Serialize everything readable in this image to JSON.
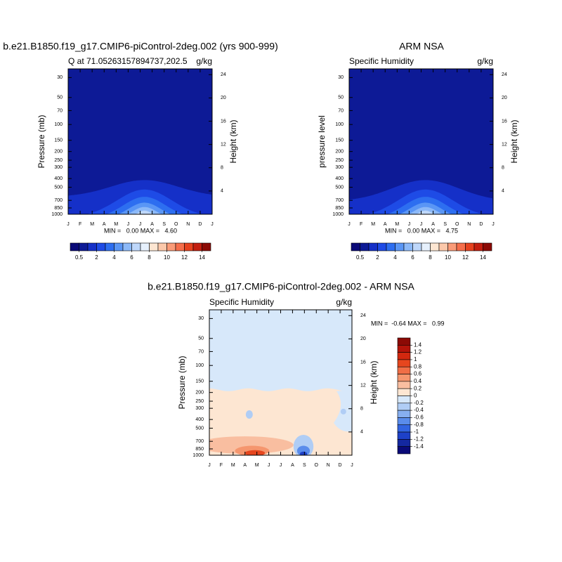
{
  "chart_data": [
    {
      "type": "contour",
      "title": "b.e21.B1850.f19_g17.CMIP6-piControl-2deg.002 (yrs 900-999)",
      "left_label": "Q at 71.05263157894737,202.5",
      "right_label": "g/kg",
      "ylabel": "Pressure (mb)",
      "y2label": "Height (km)",
      "categories": [
        "J",
        "F",
        "M",
        "A",
        "M",
        "J",
        "J",
        "A",
        "S",
        "O",
        "N",
        "D",
        "J"
      ],
      "ylim": [
        1000,
        24
      ],
      "yticks": [
        30,
        50,
        70,
        100,
        150,
        200,
        250,
        300,
        400,
        500,
        700,
        850,
        1000
      ],
      "ylog": true,
      "y2lim": [
        0,
        25
      ],
      "y2ticks": [
        4,
        8,
        12,
        16,
        20,
        24
      ],
      "stats": "MIN =   0.00 MAX =   4.60",
      "colorbar_labels": [
        0.5,
        2,
        4,
        6,
        8,
        10,
        12,
        14
      ],
      "colors": [
        "#0a0a78",
        "#0d1a96",
        "#1530c8",
        "#1e4be6",
        "#2d6ef0",
        "#5a96f5",
        "#8cb9f8",
        "#bed7fa",
        "#e6f0fc",
        "#fde6d2",
        "#fcc8aa",
        "#fa9b78",
        "#f56e4b",
        "#e6411e",
        "#c31e0f",
        "#8c0a05"
      ]
    },
    {
      "type": "contour",
      "title": "ARM NSA",
      "left_label": "Specific Humidity",
      "right_label": "g/kg",
      "ylabel": "pressure level",
      "y2label": "Height (km)",
      "categories": [
        "J",
        "F",
        "M",
        "A",
        "M",
        "J",
        "J",
        "A",
        "S",
        "O",
        "N",
        "D",
        "J"
      ],
      "ylim": [
        1000,
        24
      ],
      "yticks": [
        30,
        50,
        70,
        100,
        150,
        200,
        250,
        300,
        400,
        500,
        700,
        850,
        1000
      ],
      "ylog": true,
      "y2lim": [
        0,
        25
      ],
      "y2ticks": [
        4,
        8,
        12,
        16,
        20,
        24
      ],
      "stats": "MIN =   0.00 MAX =   4.75",
      "colorbar_labels": [
        0.5,
        2,
        4,
        6,
        8,
        10,
        12,
        14
      ],
      "colors": [
        "#0a0a78",
        "#0d1a96",
        "#1530c8",
        "#1e4be6",
        "#2d6ef0",
        "#5a96f5",
        "#8cb9f8",
        "#bed7fa",
        "#e6f0fc",
        "#fde6d2",
        "#fcc8aa",
        "#fa9b78",
        "#f56e4b",
        "#e6411e",
        "#c31e0f",
        "#8c0a05"
      ]
    },
    {
      "type": "contour-diff",
      "title": "b.e21.B1850.f19_g17.CMIP6-piControl-2deg.002 - ARM NSA",
      "left_label": "Specific Humidity",
      "right_label": "g/kg",
      "ylabel": "Pressure (mb)",
      "y2label": "Height (km)",
      "categories": [
        "J",
        "F",
        "M",
        "A",
        "M",
        "J",
        "J",
        "A",
        "S",
        "O",
        "N",
        "D",
        "J"
      ],
      "ylim": [
        1000,
        24
      ],
      "yticks": [
        30,
        50,
        70,
        100,
        150,
        200,
        250,
        300,
        400,
        500,
        700,
        850,
        1000
      ],
      "ylog": true,
      "y2lim": [
        0,
        25
      ],
      "y2ticks": [
        4,
        8,
        12,
        16,
        20,
        24
      ],
      "stats": "MIN =  -0.64 MAX =   0.99",
      "colorbar_labels": [
        1.4,
        1.2,
        1,
        0.8,
        0.6,
        0.4,
        0.2,
        0,
        -0.2,
        -0.4,
        -0.6,
        -0.8,
        -1,
        -1.2,
        -1.4
      ],
      "colors": [
        "#8c0a05",
        "#b4140a",
        "#d2280f",
        "#e6461e",
        "#f06e46",
        "#f5966e",
        "#f9bea0",
        "#fde6d2",
        "#d7e8fa",
        "#b0cdf5",
        "#87aff0",
        "#5a8ceb",
        "#3264e1",
        "#1e41c8",
        "#1428a0",
        "#0a0a78"
      ]
    }
  ]
}
